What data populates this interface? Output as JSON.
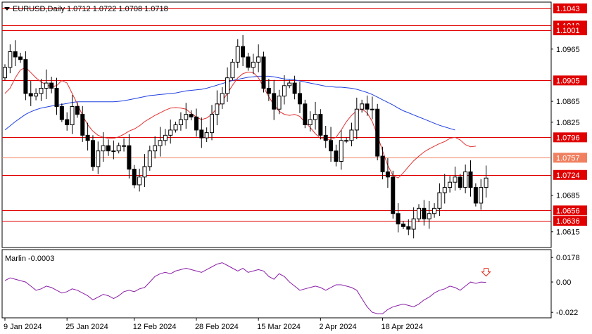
{
  "header": {
    "symbol_line": "EURUSD,Daily  1.0712 1.0722 1.0708 1.0718"
  },
  "chart_data": {
    "type": "candlestick",
    "symbol": "EURUSD",
    "timeframe": "Daily",
    "ohlc_readout": {
      "open": 1.0712,
      "high": 1.0722,
      "low": 1.0708,
      "close": 1.0718
    },
    "price_axis": {
      "ylim": [
        1.0585,
        1.1055
      ],
      "tick_labels": [
        "1.1043",
        "1.1010",
        "1.1001",
        "1.0965",
        "1.0905",
        "1.0865",
        "1.0825",
        "1.0796",
        "1.0757",
        "1.0724",
        "1.0685",
        "1.0656",
        "1.0636",
        "1.0615"
      ]
    },
    "horizontal_levels": [
      {
        "label": "1.1043",
        "value": 1.1043,
        "color": "#e00000"
      },
      {
        "label": "1.1010",
        "value": 1.101,
        "color": "#e00000"
      },
      {
        "label": "1.1001",
        "value": 1.1001,
        "color": "#e00000"
      },
      {
        "label": "1.0905",
        "value": 1.0905,
        "color": "#e00000"
      },
      {
        "label": "1.0796",
        "value": 1.0796,
        "color": "#e00000"
      },
      {
        "label": "1.0757",
        "value": 1.0757,
        "color": "#f08060"
      },
      {
        "label": "1.0724",
        "value": 1.0724,
        "color": "#e00000"
      },
      {
        "label": "1.0656",
        "value": 1.0656,
        "color": "#e00000"
      },
      {
        "label": "1.0636",
        "value": 1.0636,
        "color": "#e00000"
      }
    ],
    "x_axis": {
      "tick_labels": [
        "9 Jan 2024",
        "25 Jan 2024",
        "12 Feb 2024",
        "28 Feb 2024",
        "15 Mar 2024",
        "2 Apr 2024",
        "18 Apr 2024"
      ],
      "tick_bar_index": [
        0,
        12,
        25,
        37,
        49,
        61,
        73
      ]
    },
    "candles_close": [
      1.093,
      1.096,
      1.095,
      1.0945,
      1.088,
      1.0875,
      1.088,
      1.089,
      1.09,
      1.089,
      1.0855,
      1.083,
      1.082,
      1.0855,
      1.084,
      1.08,
      1.079,
      1.074,
      1.077,
      1.078,
      1.077,
      1.077,
      1.078,
      1.078,
      1.0735,
      1.0705,
      1.072,
      1.074,
      1.077,
      1.078,
      1.079,
      1.08,
      1.081,
      1.082,
      1.083,
      1.084,
      1.0835,
      1.081,
      1.0795,
      1.0805,
      1.084,
      1.086,
      1.088,
      1.091,
      1.094,
      1.097,
      1.095,
      1.093,
      1.094,
      1.095,
      1.089,
      1.088,
      1.085,
      1.0875,
      1.0895,
      1.09,
      1.088,
      1.086,
      1.082,
      1.083,
      1.084,
      1.08,
      1.079,
      1.077,
      1.075,
      1.079,
      1.079,
      1.081,
      1.085,
      1.086,
      1.085,
      1.085,
      1.076,
      1.073,
      1.072,
      1.065,
      1.063,
      1.0625,
      1.062,
      1.064,
      1.066,
      1.064,
      1.065,
      1.066,
      1.069,
      1.07,
      1.071,
      1.072,
      1.07,
      1.073,
      1.07,
      1.067,
      1.07,
      1.0718
    ],
    "moving_averages": [
      {
        "color": "#2040e0",
        "values": [
          1.081,
          1.0818,
          1.0826,
          1.0833,
          1.084,
          1.0845,
          1.0849,
          1.0852,
          1.0854,
          1.0856,
          1.0857,
          1.0859,
          1.0861,
          1.0863,
          1.0864,
          1.0864,
          1.0864,
          1.0864,
          1.0864,
          1.0864,
          1.0864,
          1.0864,
          1.0865,
          1.0866,
          1.0868,
          1.087,
          1.0872,
          1.0874,
          1.0876,
          1.0877,
          1.0878,
          1.0879,
          1.088,
          1.0881,
          1.0883,
          1.0885,
          1.0886,
          1.0887,
          1.0888,
          1.089,
          1.0893,
          1.0896,
          1.0899,
          1.0902,
          1.0905,
          1.0907,
          1.0909,
          1.0911,
          1.0912,
          1.0913,
          1.0913,
          1.0913,
          1.0912,
          1.091,
          1.0908,
          1.0907,
          1.0906,
          1.0904,
          1.0902,
          1.09,
          1.0898,
          1.0896,
          1.0894,
          1.0893,
          1.0892,
          1.0892,
          1.0891,
          1.089,
          1.0888,
          1.0885,
          1.0882,
          1.0878,
          1.0873,
          1.0868,
          1.0863,
          1.0858,
          1.0852,
          1.0847,
          1.0843,
          1.0839,
          1.0835,
          1.0831,
          1.0827,
          1.0823,
          1.0819,
          1.0816,
          1.0813,
          1.081
        ]
      },
      {
        "color": "#e03030",
        "values": [
          1.088,
          1.089,
          1.091,
          1.0925,
          1.093,
          1.092,
          1.091,
          1.0902,
          1.0897,
          1.0893,
          1.0895,
          1.0905,
          1.09,
          1.088,
          1.086,
          1.0838,
          1.082,
          1.0808,
          1.08,
          1.0796,
          1.0794,
          1.0794,
          1.0797,
          1.0802,
          1.0808,
          1.0812,
          1.0818,
          1.0826,
          1.0832,
          1.0838,
          1.0843,
          1.0848,
          1.0852,
          1.0853,
          1.0852,
          1.085,
          1.0842,
          1.0835,
          1.083,
          1.0833,
          1.084,
          1.0852,
          1.0866,
          1.088,
          1.0896,
          1.091,
          1.0918,
          1.0921,
          1.092,
          1.091,
          1.0892,
          1.0874,
          1.0858,
          1.0846,
          1.084,
          1.0838,
          1.084,
          1.0836,
          1.0825,
          1.0815,
          1.0803,
          1.0794,
          1.0792,
          1.0792,
          1.0796,
          1.081,
          1.0826,
          1.0838,
          1.0847,
          1.085,
          1.0843,
          1.0826,
          1.08,
          1.077,
          1.0742,
          1.0723,
          1.0718,
          1.0728,
          1.074,
          1.0751,
          1.076,
          1.0768,
          1.0774,
          1.0779,
          1.0784,
          1.0788,
          1.0794,
          1.0796,
          1.0791,
          1.0782,
          1.0778,
          1.0779
        ]
      }
    ],
    "indicator": {
      "name": "Marlin",
      "label": "Marlin -0.0003",
      "last_value": -0.0003,
      "color": "#8a1fa6",
      "ylim": [
        -0.026,
        0.0235
      ],
      "tick_labels": [
        "0.0178",
        "0.00",
        "-0.022"
      ],
      "values": [
        0.001,
        0.003,
        0.002,
        0.001,
        0.0,
        -0.003,
        -0.006,
        -0.005,
        -0.003,
        -0.004,
        -0.006,
        -0.008,
        -0.007,
        -0.005,
        -0.006,
        -0.008,
        -0.01,
        -0.013,
        -0.011,
        -0.009,
        -0.01,
        -0.012,
        -0.01,
        -0.007,
        -0.006,
        -0.007,
        -0.005,
        -0.004,
        0.0,
        0.004,
        0.006,
        0.007,
        0.006,
        0.008,
        0.009,
        0.01,
        0.009,
        0.008,
        0.007,
        0.009,
        0.011,
        0.013,
        0.014,
        0.012,
        0.01,
        0.008,
        0.01,
        0.007,
        0.008,
        0.009,
        0.008,
        0.004,
        0.002,
        0.006,
        0.004,
        0.0,
        -0.003,
        -0.006,
        -0.005,
        -0.004,
        -0.003,
        -0.004,
        -0.006,
        -0.004,
        -0.002,
        -0.002,
        -0.003,
        -0.004,
        -0.006,
        -0.012,
        -0.018,
        -0.022,
        -0.023,
        -0.023,
        -0.02,
        -0.018,
        -0.017,
        -0.016,
        -0.017,
        -0.018,
        -0.016,
        -0.013,
        -0.011,
        -0.008,
        -0.006,
        -0.005,
        -0.003,
        -0.004,
        -0.006,
        -0.003,
        0.0,
        -0.001,
        0.0,
        -0.0003
      ],
      "signal_arrow": {
        "direction": "down",
        "color": "#e03020"
      }
    }
  },
  "legend": {
    "marker": "▼"
  }
}
